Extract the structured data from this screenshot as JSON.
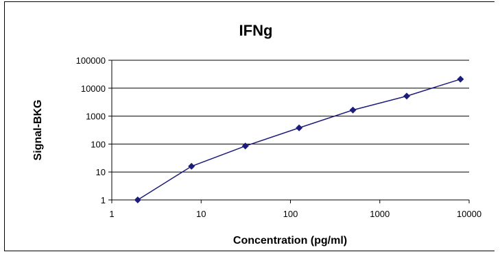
{
  "chart_data": {
    "type": "line",
    "title": "IFNg",
    "xlabel": "Concentration (pg/ml)",
    "ylabel": "Signal-BKG",
    "x_scale": "log",
    "y_scale": "log",
    "xlim": [
      1,
      10000
    ],
    "ylim": [
      1,
      100000
    ],
    "x_ticks": [
      "1",
      "10",
      "100",
      "1000",
      "10000"
    ],
    "y_ticks": [
      "1",
      "10",
      "100",
      "1000",
      "10000",
      "100000"
    ],
    "grid": "horizontal",
    "legend": "none",
    "color": "#1c1c7a",
    "series": [
      {
        "x": [
          1.95,
          7.8,
          31.25,
          125,
          500,
          2000,
          8000
        ],
        "y": [
          1,
          16,
          85,
          380,
          1650,
          5200,
          21000
        ]
      }
    ]
  }
}
